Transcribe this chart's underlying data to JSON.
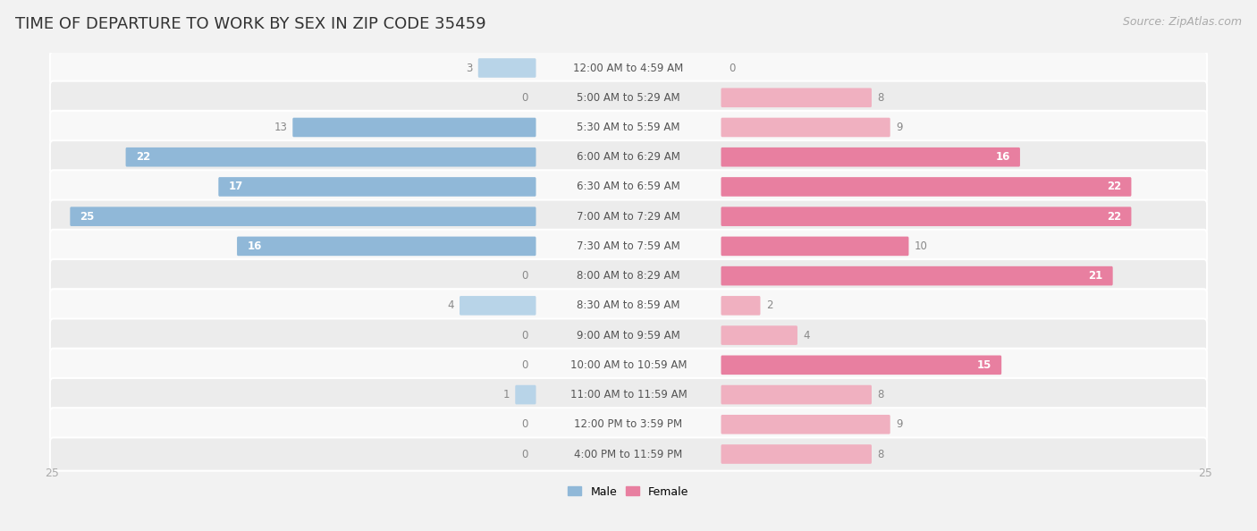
{
  "title": "TIME OF DEPARTURE TO WORK BY SEX IN ZIP CODE 35459",
  "source": "Source: ZipAtlas.com",
  "categories": [
    "12:00 AM to 4:59 AM",
    "5:00 AM to 5:29 AM",
    "5:30 AM to 5:59 AM",
    "6:00 AM to 6:29 AM",
    "6:30 AM to 6:59 AM",
    "7:00 AM to 7:29 AM",
    "7:30 AM to 7:59 AM",
    "8:00 AM to 8:29 AM",
    "8:30 AM to 8:59 AM",
    "9:00 AM to 9:59 AM",
    "10:00 AM to 10:59 AM",
    "11:00 AM to 11:59 AM",
    "12:00 PM to 3:59 PM",
    "4:00 PM to 11:59 PM"
  ],
  "male": [
    3,
    0,
    13,
    22,
    17,
    25,
    16,
    0,
    4,
    0,
    0,
    1,
    0,
    0
  ],
  "female": [
    0,
    8,
    9,
    16,
    22,
    22,
    10,
    21,
    2,
    4,
    15,
    8,
    9,
    8
  ],
  "male_color": "#90b8d8",
  "female_color": "#e87fa0",
  "male_color_light": "#b8d4e8",
  "female_color_light": "#f0b0c0",
  "bg_color": "#f2f2f2",
  "row_color_light": "#f8f8f8",
  "row_color_dark": "#ececec",
  "max_val": 25,
  "title_fontsize": 13,
  "source_fontsize": 9,
  "cat_label_fontsize": 8.5,
  "val_label_fontsize": 8.5,
  "outside_label_color": "#888888",
  "inside_label_color_male": "#ffffff",
  "inside_label_color_female": "#ffffff",
  "scale_label_color": "#aaaaaa"
}
